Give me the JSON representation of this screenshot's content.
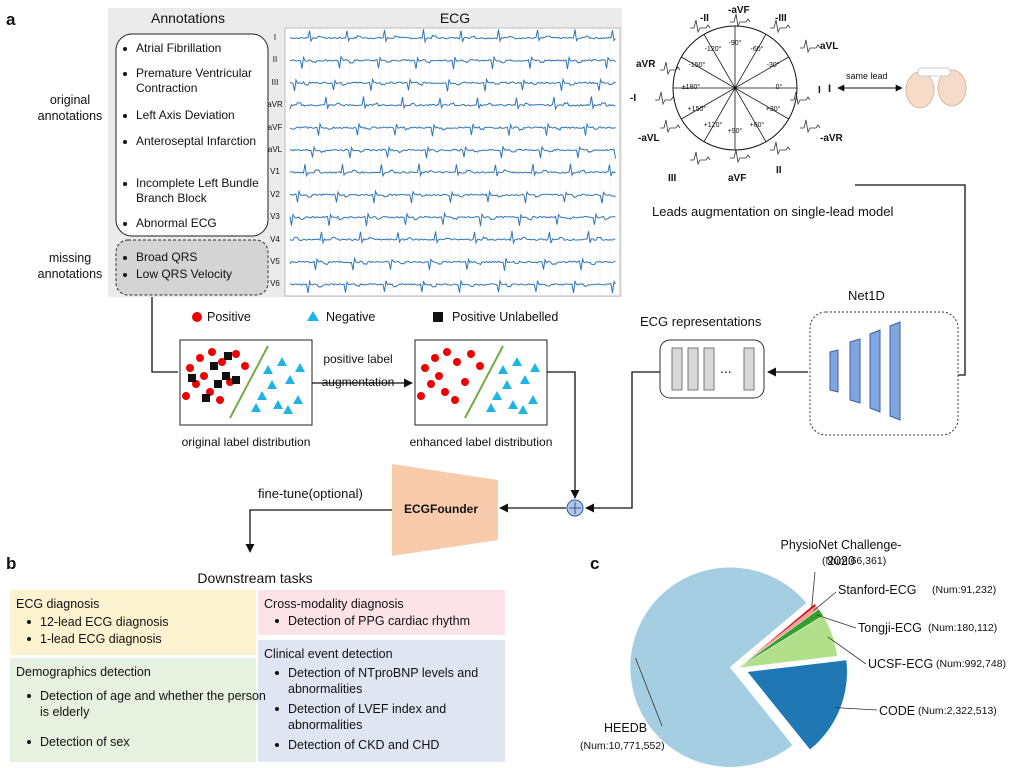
{
  "panel_a": {
    "label": "a",
    "annotations_title": "Annotations",
    "ecg_title": "ECG",
    "original_annotations": "original annotations",
    "missing_annotations": "missing annotations",
    "annotations": [
      "Atrial Fibrillation",
      "Premature Ventricular Contraction",
      "Left Axis Deviation",
      "Anteroseptal Infarction",
      "Incomplete Left Bundle Branch Block",
      "Abnormal ECG"
    ],
    "missing": [
      "Broad QRS",
      "Low QRS Velocity"
    ],
    "leads": [
      "I",
      "II",
      "III",
      "aVR",
      "aVF",
      "aVL",
      "V1",
      "V2",
      "V3",
      "V4",
      "V5",
      "V6"
    ],
    "hexaxial_leads": [
      "-II",
      "-aVF",
      "-III",
      "aVL",
      "aVR",
      "-I",
      "I",
      "-aVL",
      "-aVR",
      "III",
      "aVF",
      "II"
    ],
    "degrees": [
      "-90°",
      "-60°",
      "-30°",
      "0°",
      "+30°",
      "+60°",
      "+90°",
      "+120°",
      "+150°",
      "±180°",
      "-150°",
      "-120°"
    ],
    "same_lead_I": "I",
    "same_lead": "same lead",
    "leads_augmentation": "Leads augmentation on single-lead model",
    "legend": [
      "Positive",
      "Negative",
      "Positive Unlabelled"
    ],
    "positive_label": "positive label",
    "augmentation": "augmentation",
    "original_distribution": "original label distribution",
    "enhanced_distribution": "enhanced label distribution",
    "ecg_representations": "ECG representations",
    "ellipsis": "...",
    "net1d": "Net1D",
    "ecgfounder": "ECGFounder",
    "fine_tune": "fine-tune(optional)"
  },
  "panel_b": {
    "label": "b",
    "title": "Downstream tasks",
    "boxes": [
      {
        "title": "ECG diagnosis",
        "items": [
          "12-lead ECG diagnosis",
          "1-lead ECG diagnosis"
        ]
      },
      {
        "title": "Cross-modality diagnosis",
        "items": [
          "Detection of PPG cardiac rhythm"
        ]
      },
      {
        "title": "Demographics detection",
        "items": [
          "Detection of age and whether the person is elderly",
          "Detection of sex"
        ]
      },
      {
        "title": "Clinical event detection",
        "items": [
          "Detection of NTproBNP levels and abnormalities",
          "Detection of LVEF index and abnormalities",
          "Detection of CKD and CHD"
        ]
      }
    ]
  },
  "panel_c": {
    "label": "c"
  },
  "chart_data": {
    "type": "pie",
    "categories": [
      "PhysioNet Challenge-2020",
      "Stanford-ECG",
      "Tongji-ECG",
      "UCSF-ECG",
      "CODE",
      "HEEDB"
    ],
    "values": [
      66361,
      91232,
      180112,
      992748,
      2322513,
      10771552
    ],
    "value_labels": [
      "(Num:66,361)",
      "(Num:91,232)",
      "(Num:180,112)",
      "(Num:992,748)",
      "(Num:2,322,513)",
      "(Num:10,771,552)"
    ],
    "colors": [
      "#e31a1c",
      "#fb9a99",
      "#33a02c",
      "#b2df8a",
      "#1f78b4",
      "#a6cee3"
    ]
  }
}
